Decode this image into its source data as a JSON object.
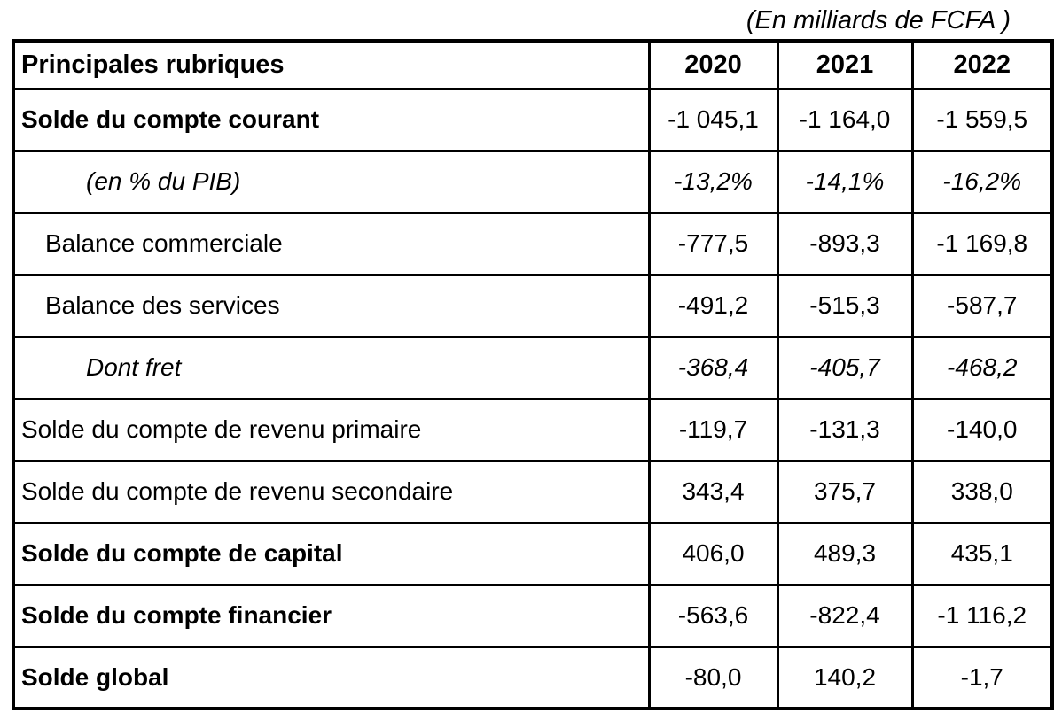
{
  "caption": "(En milliards de FCFA )",
  "table": {
    "header": {
      "label": "Principales rubriques",
      "years": [
        "2020",
        "2021",
        "2022"
      ]
    },
    "rows": [
      {
        "label": "Solde du compte courant",
        "style": "bold",
        "indent": 0,
        "values": [
          "-1 045,1",
          "-1 164,0",
          "-1 559,5"
        ]
      },
      {
        "label": "(en % du PIB)",
        "style": "italic",
        "indent": 2,
        "values": [
          "-13,2%",
          "-14,1%",
          "-16,2%"
        ]
      },
      {
        "label": "Balance commerciale",
        "style": "normal",
        "indent": 1,
        "values": [
          "-777,5",
          "-893,3",
          "-1 169,8"
        ]
      },
      {
        "label": "Balance des services",
        "style": "normal",
        "indent": 1,
        "values": [
          "-491,2",
          "-515,3",
          "-587,7"
        ]
      },
      {
        "label": "Dont fret",
        "style": "italic",
        "indent": 2,
        "values": [
          "-368,4",
          "-405,7",
          "-468,2"
        ]
      },
      {
        "label": "Solde du compte de revenu primaire",
        "style": "normal",
        "indent": 0,
        "values": [
          "-119,7",
          "-131,3",
          "-140,0"
        ]
      },
      {
        "label": "Solde du compte de revenu secondaire",
        "style": "normal",
        "indent": 0,
        "values": [
          "343,4",
          "375,7",
          "338,0"
        ]
      },
      {
        "label": "Solde du compte de capital",
        "style": "bold",
        "indent": 0,
        "values": [
          "406,0",
          "489,3",
          "435,1"
        ]
      },
      {
        "label": "Solde du compte financier",
        "style": "bold",
        "indent": 0,
        "values": [
          "-563,6",
          "-822,4",
          "-1 116,2"
        ]
      },
      {
        "label": "Solde global",
        "style": "bold",
        "indent": 0,
        "values": [
          "-80,0",
          "140,2",
          "-1,7"
        ]
      }
    ]
  }
}
